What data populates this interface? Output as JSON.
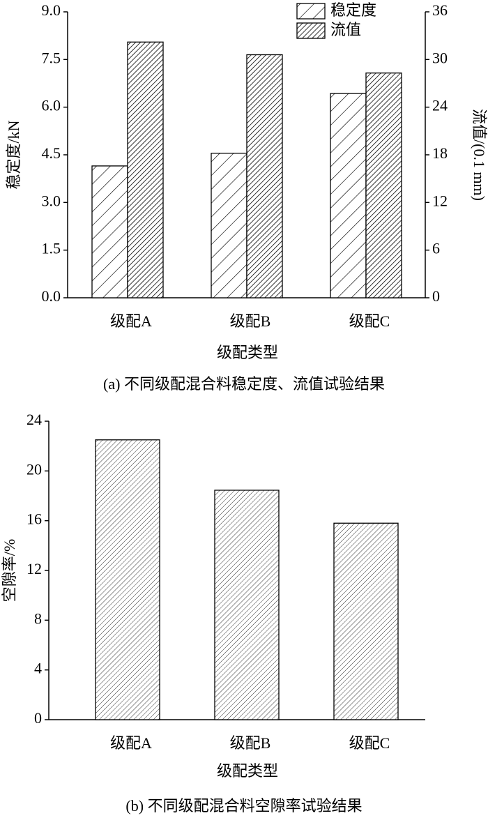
{
  "chart_data": [
    {
      "type": "bar",
      "title": "(a) 不同级配混合料稳定度、流值试验结果",
      "x_label": "级配类型",
      "y_label": "稳定度/kN",
      "y2_label": "流值/(0.1 mm)",
      "categories": [
        "级配A",
        "级配B",
        "级配C"
      ],
      "series": [
        {
          "name": "稳定度",
          "color": "#000000",
          "hatch": "sparse",
          "values": [
            4.15,
            4.55,
            6.43
          ]
        },
        {
          "name": "流值",
          "color": "#000000",
          "hatch": "dense",
          "axis": "y2",
          "values": [
            32.2,
            30.6,
            28.3
          ]
        }
      ],
      "ylim": [
        0,
        9
      ],
      "yticks": [
        {
          "value": 0,
          "label": "0.0"
        },
        1.5,
        {
          "value": 3,
          "label": "3.0"
        },
        4.5,
        {
          "value": 6,
          "label": "6.0"
        },
        7.5,
        {
          "value": 9,
          "label": "9.0"
        }
      ],
      "y2lim": [
        0,
        36
      ],
      "y2ticks": [
        0,
        6,
        12,
        18,
        24,
        30,
        36
      ],
      "legend": "upper right"
    },
    {
      "type": "bar",
      "title": "(b) 不同级配混合料空隙率试验结果",
      "x_label": "级配类型",
      "y_label": "空隙率/%",
      "categories": [
        "级配A",
        "级配B",
        "级配C"
      ],
      "values": [
        22.5,
        18.45,
        15.8
      ],
      "color": "#333333",
      "hatch": "light",
      "ylim": [
        0,
        24
      ],
      "yticks": [
        0,
        4,
        8,
        12,
        16,
        20,
        24
      ]
    }
  ]
}
